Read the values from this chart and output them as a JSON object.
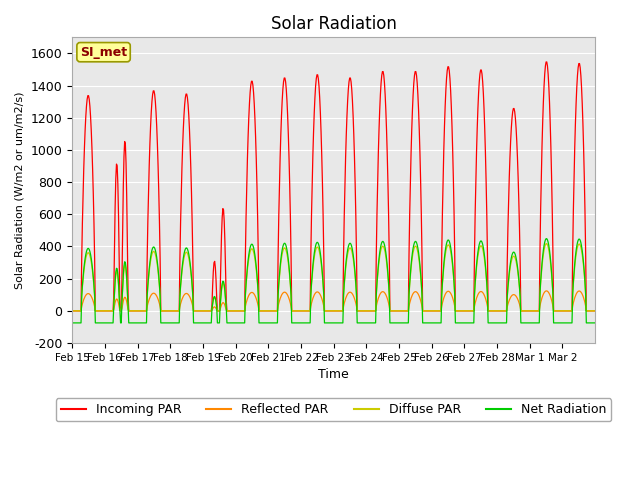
{
  "title": "Solar Radiation",
  "ylabel": "Solar Radiation (W/m2 or um/m2/s)",
  "xlabel": "Time",
  "ylim": [
    -200,
    1700
  ],
  "yticks": [
    -200,
    0,
    200,
    400,
    600,
    800,
    1000,
    1200,
    1400,
    1600
  ],
  "x_tick_labels": [
    "Feb 15",
    "Feb 16",
    "Feb 17",
    "Feb 18",
    "Feb 19",
    "Feb 20",
    "Feb 21",
    "Feb 22",
    "Feb 23",
    "Feb 24",
    "Feb 25",
    "Feb 26",
    "Feb 27",
    "Feb 28",
    "Mar 1",
    "Mar 2"
  ],
  "background_color": "#e8e8e8",
  "annotation_label": "SI_met",
  "annotation_bg": "#ffff99",
  "annotation_border": "#999900",
  "colors": {
    "incoming": "#ff0000",
    "reflected": "#ff8800",
    "diffuse": "#cccc00",
    "net": "#00cc00"
  },
  "legend_labels": [
    "Incoming PAR",
    "Reflected PAR",
    "Diffuse PAR",
    "Net Radiation"
  ],
  "incoming_peaks": [
    1340,
    1200,
    1370,
    1350,
    720,
    1430,
    1450,
    1470,
    1450,
    1490,
    1490,
    1520,
    1500,
    1260,
    1550,
    1540
  ],
  "n_days": 16,
  "hours_per_day": 48
}
